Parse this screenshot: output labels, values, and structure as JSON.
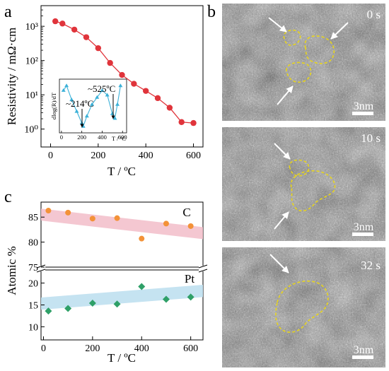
{
  "panel_labels": {
    "a": "a",
    "b": "b",
    "c": "c"
  },
  "colors": {
    "resistivity": "#e0343b",
    "deriv": "#3cb1d8",
    "carbon": "#f39238",
    "platinum": "#2fa068",
    "carbon_band": "#f2bdc9",
    "platinum_band": "#bfe0f0"
  },
  "panel_b": {
    "frames": [
      {
        "time": "0 s",
        "scale": "3nm"
      },
      {
        "time": "10 s",
        "scale": "3nm"
      },
      {
        "time": "32 s",
        "scale": "3nm"
      }
    ]
  },
  "chart_data": [
    {
      "panel": "a",
      "type": "line",
      "xlabel": "T / ºC",
      "ylabel": "Resistivity / mΩ·cm",
      "xlim": [
        -40,
        640
      ],
      "ylim": [
        0.3,
        4000
      ],
      "yscale": "log",
      "xticks": [
        "0",
        "200",
        "400",
        "600"
      ],
      "yticks": [
        "10⁰",
        "10¹",
        "10²",
        "10³"
      ],
      "series": [
        {
          "x": [
            20,
            50,
            100,
            150,
            200,
            250,
            300,
            350,
            400,
            450,
            500,
            550,
            600
          ],
          "y": [
            1400,
            1200,
            800,
            480,
            230,
            85,
            38,
            21,
            13,
            8,
            4.2,
            1.6,
            1.5
          ]
        }
      ],
      "inset": {
        "type": "line",
        "xlabel": "T / ºC",
        "ylabel": "dlog(R)/dT",
        "xlim": [
          -20,
          640
        ],
        "xticks": [
          "0",
          "200",
          "400",
          "600"
        ],
        "annotations": [
          "~214ºC",
          "~525ºC"
        ],
        "series": [
          {
            "x": [
              20,
              50,
              100,
              150,
              200,
              214,
              250,
              300,
              350,
              400,
              450,
              500,
              525,
              550,
              580
            ],
            "y": [
              0.85,
              0.95,
              0.65,
              0.4,
              0.15,
              0.08,
              0.3,
              0.55,
              0.7,
              0.85,
              0.75,
              0.35,
              0.25,
              0.55,
              0.95
            ]
          }
        ]
      }
    },
    {
      "panel": "c",
      "type": "scatter",
      "xlabel": "T / ºC",
      "ylabel": "Atomic %",
      "xlim": [
        -10,
        650
      ],
      "xticks": [
        "0",
        "200",
        "400",
        "600"
      ],
      "top_axis": {
        "ylim": [
          75,
          88
        ],
        "yticks": [
          "75",
          "80",
          "85"
        ]
      },
      "bottom_axis": {
        "ylim": [
          7,
          23
        ],
        "yticks": [
          "10",
          "15",
          "20"
        ]
      },
      "series": [
        {
          "name": "C",
          "x": [
            20,
            100,
            200,
            300,
            400,
            500,
            600
          ],
          "y": [
            86.3,
            85.9,
            84.7,
            84.8,
            80.7,
            83.7,
            83.2
          ],
          "trend": [
            85.5,
            81.8
          ]
        },
        {
          "name": "Pt",
          "x": [
            20,
            100,
            200,
            300,
            400,
            500,
            600
          ],
          "y": [
            13.6,
            14.2,
            15.4,
            15.2,
            19.2,
            16.3,
            16.8
          ],
          "trend": [
            15.3,
            18.2
          ]
        }
      ]
    }
  ]
}
